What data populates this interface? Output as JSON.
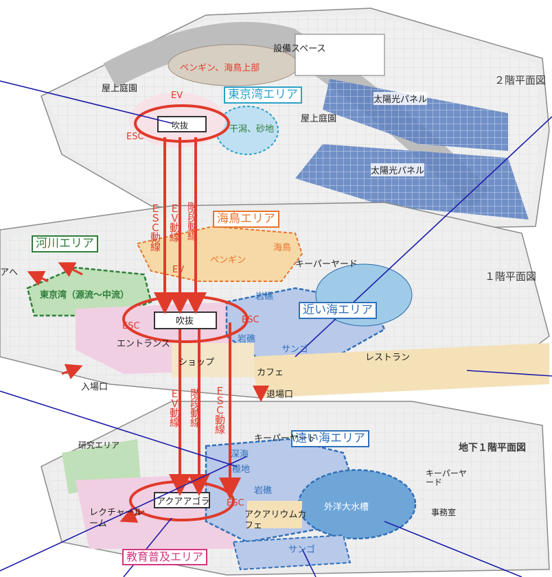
{
  "floors": {
    "f2": "２階平面図",
    "f1": "１階平面図",
    "b1": "地下１階平面図"
  },
  "areas": {
    "tokyo_bay": "東京湾エリア",
    "seabird": "海鳥エリア",
    "river": "河川エリア",
    "near_sea": "近い海エリア",
    "far_sea": "遠い海エリア",
    "education": "教育普及エリア"
  },
  "labels_f2": {
    "equipment": "設備スペース",
    "penguin_top": "ペンギン、海鳥上部",
    "roof_garden_left": "屋上庭園",
    "roof_garden_right": "屋上庭園",
    "solar1": "太陽光パネル",
    "solar2": "太陽光パネル",
    "tidal_flat": "干潟、砂地",
    "atrium": "吹抜",
    "ev": "EV",
    "esc": "ESC"
  },
  "labels_f1": {
    "penguin": "ペンギン",
    "seabird": "海鳥",
    "keeper_yard": "キーパーヤード",
    "tokyo_bay_source": "東京湾（源流～中流）",
    "to_area": "アへ",
    "rock1": "岩礁",
    "rock2": "岩礁",
    "coral": "サンゴ",
    "restaurant": "レストラン",
    "cafe": "カフェ",
    "shop": "ショップ",
    "entrance": "エントランス",
    "entry_gate": "入場口",
    "exit_gate": "退場口",
    "atrium": "吹抜",
    "ev": "EV",
    "esc_left": "ESC",
    "esc_right": "ESC"
  },
  "labels_b1": {
    "keeper_yard": "キーパーヤード",
    "deep_sea": "深海",
    "polar": "極地",
    "rock": "岩礁",
    "ocean_tank": "外洋大水槽",
    "keeper_yard2": "キーパーヤード",
    "office": "事務室",
    "research": "研究エリア",
    "lecture": "レクチャールーム",
    "agora": "アクアアゴラ",
    "aqua_cafe": "アクアリウムカフェ",
    "coral": "サンゴ",
    "ev": "EV",
    "esc": "ESC"
  },
  "flows": {
    "esc_upper": "ＥＳＣ動線",
    "ev_upper": "ＥＶ動線",
    "stairs_upper": "階段動線",
    "ev_lower": "ＥＶ動線",
    "stairs_lower": "階段動線",
    "esc_lower": "ＥＳＣ動線"
  },
  "colors": {
    "flow_red": "#e03a2a",
    "tokyo_bay": "#2aa0c8",
    "seabird": "#e8742a",
    "river": "#2e7d3a",
    "near_sea": "#2f6fb8",
    "far_sea": "#2f6fb8",
    "education": "#d4357e",
    "pointer_line": "#1c1ca8"
  }
}
